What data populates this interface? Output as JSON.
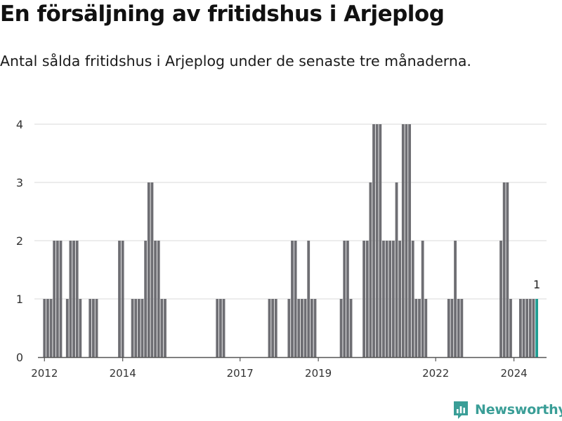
{
  "header": {
    "title": "En försäljning av fritidshus i Arjeplog",
    "subtitle": "Antal sålda fritidshus i Arjeplog under de senaste tre månaderna."
  },
  "brand": {
    "name": "Newsworthy",
    "icon": "newsworthy-logo-icon",
    "color": "#3a9e97"
  },
  "chart_data": {
    "type": "bar",
    "title": "En försäljning av fritidshus i Arjeplog",
    "subtitle": "Antal sålda fritidshus i Arjeplog under de senaste tre månaderna.",
    "xlabel": "",
    "ylabel": "",
    "ylim": [
      0,
      4
    ],
    "yticks": [
      0,
      1,
      2,
      3,
      4
    ],
    "grid": true,
    "x_unit": "month index from Jan 2012",
    "xlim": [
      -2,
      154
    ],
    "xticks": [
      {
        "label": "2012",
        "value": 0
      },
      {
        "label": "2014",
        "value": 24
      },
      {
        "label": "2017",
        "value": 60
      },
      {
        "label": "2019",
        "value": 84
      },
      {
        "label": "2022",
        "value": 120
      },
      {
        "label": "2024",
        "value": 144
      }
    ],
    "bar_color": "#6e6e73",
    "highlight_color": "#1f9e93",
    "highlight_label": "1",
    "series": [
      {
        "name": "Antal sålda fritidshus",
        "points": [
          [
            0,
            1
          ],
          [
            1,
            1
          ],
          [
            2,
            1
          ],
          [
            3,
            2
          ],
          [
            4,
            2
          ],
          [
            5,
            2
          ],
          [
            7,
            1
          ],
          [
            8,
            2
          ],
          [
            9,
            2
          ],
          [
            10,
            2
          ],
          [
            11,
            1
          ],
          [
            14,
            1
          ],
          [
            15,
            1
          ],
          [
            16,
            1
          ],
          [
            23,
            2
          ],
          [
            24,
            2
          ],
          [
            27,
            1
          ],
          [
            28,
            1
          ],
          [
            29,
            1
          ],
          [
            30,
            1
          ],
          [
            31,
            2
          ],
          [
            32,
            3
          ],
          [
            33,
            3
          ],
          [
            34,
            2
          ],
          [
            35,
            2
          ],
          [
            36,
            1
          ],
          [
            37,
            1
          ],
          [
            53,
            1
          ],
          [
            54,
            1
          ],
          [
            55,
            1
          ],
          [
            69,
            1
          ],
          [
            70,
            1
          ],
          [
            71,
            1
          ],
          [
            75,
            1
          ],
          [
            76,
            2
          ],
          [
            77,
            2
          ],
          [
            78,
            1
          ],
          [
            79,
            1
          ],
          [
            80,
            1
          ],
          [
            81,
            2
          ],
          [
            82,
            1
          ],
          [
            83,
            1
          ],
          [
            91,
            1
          ],
          [
            92,
            2
          ],
          [
            93,
            2
          ],
          [
            94,
            1
          ],
          [
            98,
            2
          ],
          [
            99,
            2
          ],
          [
            100,
            3
          ],
          [
            101,
            4
          ],
          [
            102,
            4
          ],
          [
            103,
            4
          ],
          [
            104,
            2
          ],
          [
            105,
            2
          ],
          [
            106,
            2
          ],
          [
            107,
            2
          ],
          [
            108,
            3
          ],
          [
            109,
            2
          ],
          [
            110,
            4
          ],
          [
            111,
            4
          ],
          [
            112,
            4
          ],
          [
            113,
            2
          ],
          [
            114,
            1
          ],
          [
            115,
            1
          ],
          [
            116,
            2
          ],
          [
            117,
            1
          ],
          [
            124,
            1
          ],
          [
            125,
            1
          ],
          [
            126,
            2
          ],
          [
            127,
            1
          ],
          [
            128,
            1
          ],
          [
            140,
            2
          ],
          [
            141,
            3
          ],
          [
            142,
            3
          ],
          [
            143,
            1
          ],
          [
            146,
            1
          ],
          [
            147,
            1
          ],
          [
            148,
            1
          ],
          [
            149,
            1
          ],
          [
            150,
            1
          ],
          [
            151,
            1
          ]
        ]
      }
    ]
  }
}
